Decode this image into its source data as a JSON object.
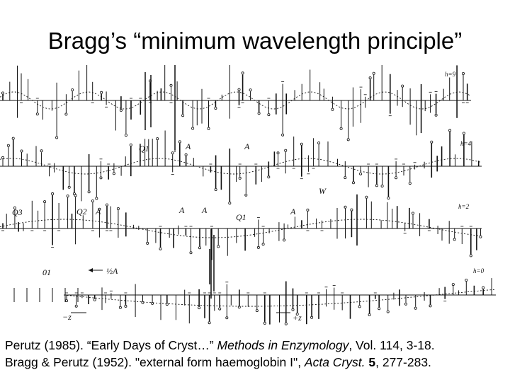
{
  "slide": {
    "title": "Bragg’s “minimum wavelength principle”"
  },
  "figure": {
    "panels": [
      {
        "label": "h=9",
        "labels": []
      },
      {
        "label": "h=4",
        "labels": [
          "Q1",
          "A",
          "A",
          "W"
        ]
      },
      {
        "label": "h=2",
        "labels": [
          "Q3",
          "Q2",
          "A",
          "A",
          "A",
          "Q1",
          "A"
        ]
      },
      {
        "label": "h=0",
        "labels": [
          "01",
          "½A",
          "−z",
          "+z"
        ]
      }
    ]
  },
  "caption": {
    "line1": {
      "part1": "Perutz (1985). “Early Days of Cryst…” ",
      "italic": "Methods in Enzymology",
      "part2": ", Vol. 114, 3-18."
    },
    "line2": {
      "part1": "Bragg & Perutz (1952). \"external form haemoglobin I\", ",
      "italic": "Acta Cryst.",
      "part2": " ",
      "bold": "5",
      "part3": ", 277-283."
    }
  }
}
